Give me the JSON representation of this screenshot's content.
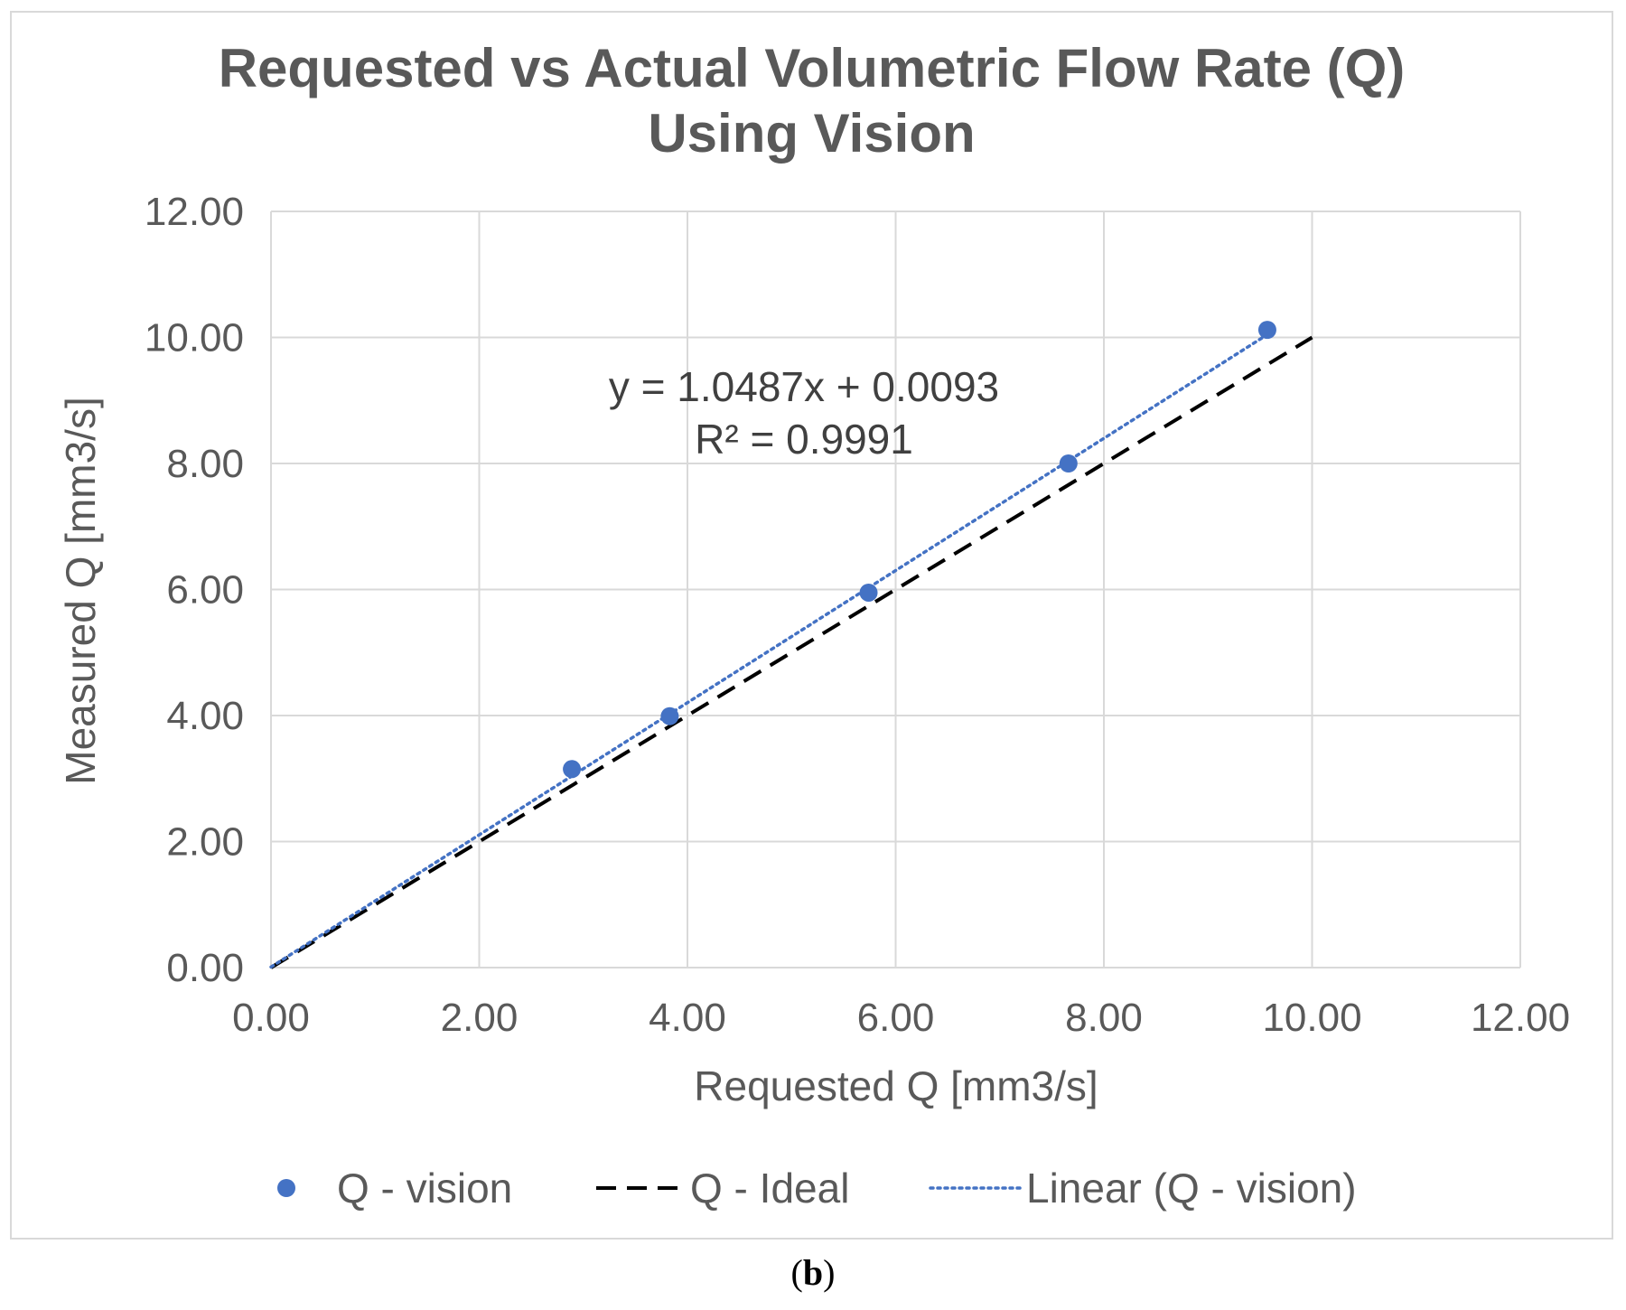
{
  "chart_data": {
    "type": "scatter",
    "title_line1": "Requested vs Actual Volumetric Flow Rate (Q)",
    "title_line2": "Using Vision",
    "xlabel": "Requested Q [mm3/s]",
    "ylabel": "Measured Q [mm3/s]",
    "xlim": [
      0,
      12
    ],
    "ylim": [
      0,
      12
    ],
    "x_ticks": [
      0,
      2,
      4,
      6,
      8,
      10,
      12
    ],
    "y_ticks": [
      0,
      2,
      4,
      6,
      8,
      10,
      12
    ],
    "x_tick_labels": [
      "0.00",
      "2.00",
      "4.00",
      "6.00",
      "8.00",
      "10.00",
      "12.00"
    ],
    "y_tick_labels": [
      "0.00",
      "2.00",
      "4.00",
      "6.00",
      "8.00",
      "10.00",
      "12.00"
    ],
    "grid": true,
    "legend_position": "bottom",
    "series": [
      {
        "name": "Q - vision",
        "kind": "scatter",
        "color": "#4472c4",
        "points": [
          {
            "x": 2.89,
            "y": 3.15
          },
          {
            "x": 3.83,
            "y": 3.99
          },
          {
            "x": 5.74,
            "y": 5.95
          },
          {
            "x": 7.66,
            "y": 8.0
          },
          {
            "x": 9.57,
            "y": 10.12
          }
        ]
      },
      {
        "name": "Q - Ideal",
        "kind": "line",
        "style": "dashed",
        "color": "#000000",
        "points": [
          {
            "x": 0,
            "y": 0
          },
          {
            "x": 10,
            "y": 10
          }
        ]
      },
      {
        "name": "Linear (Q - vision)",
        "kind": "trendline",
        "style": "dotted",
        "color": "#4472c4",
        "slope": 1.0487,
        "intercept": 0.0093,
        "x_range": [
          0,
          9.57
        ]
      }
    ],
    "annotation": {
      "equation": "y = 1.0487x + 0.0093",
      "r_squared": "R² = 0.9991"
    }
  },
  "caption": {
    "open": "(",
    "letter": "b",
    "close": ")"
  }
}
